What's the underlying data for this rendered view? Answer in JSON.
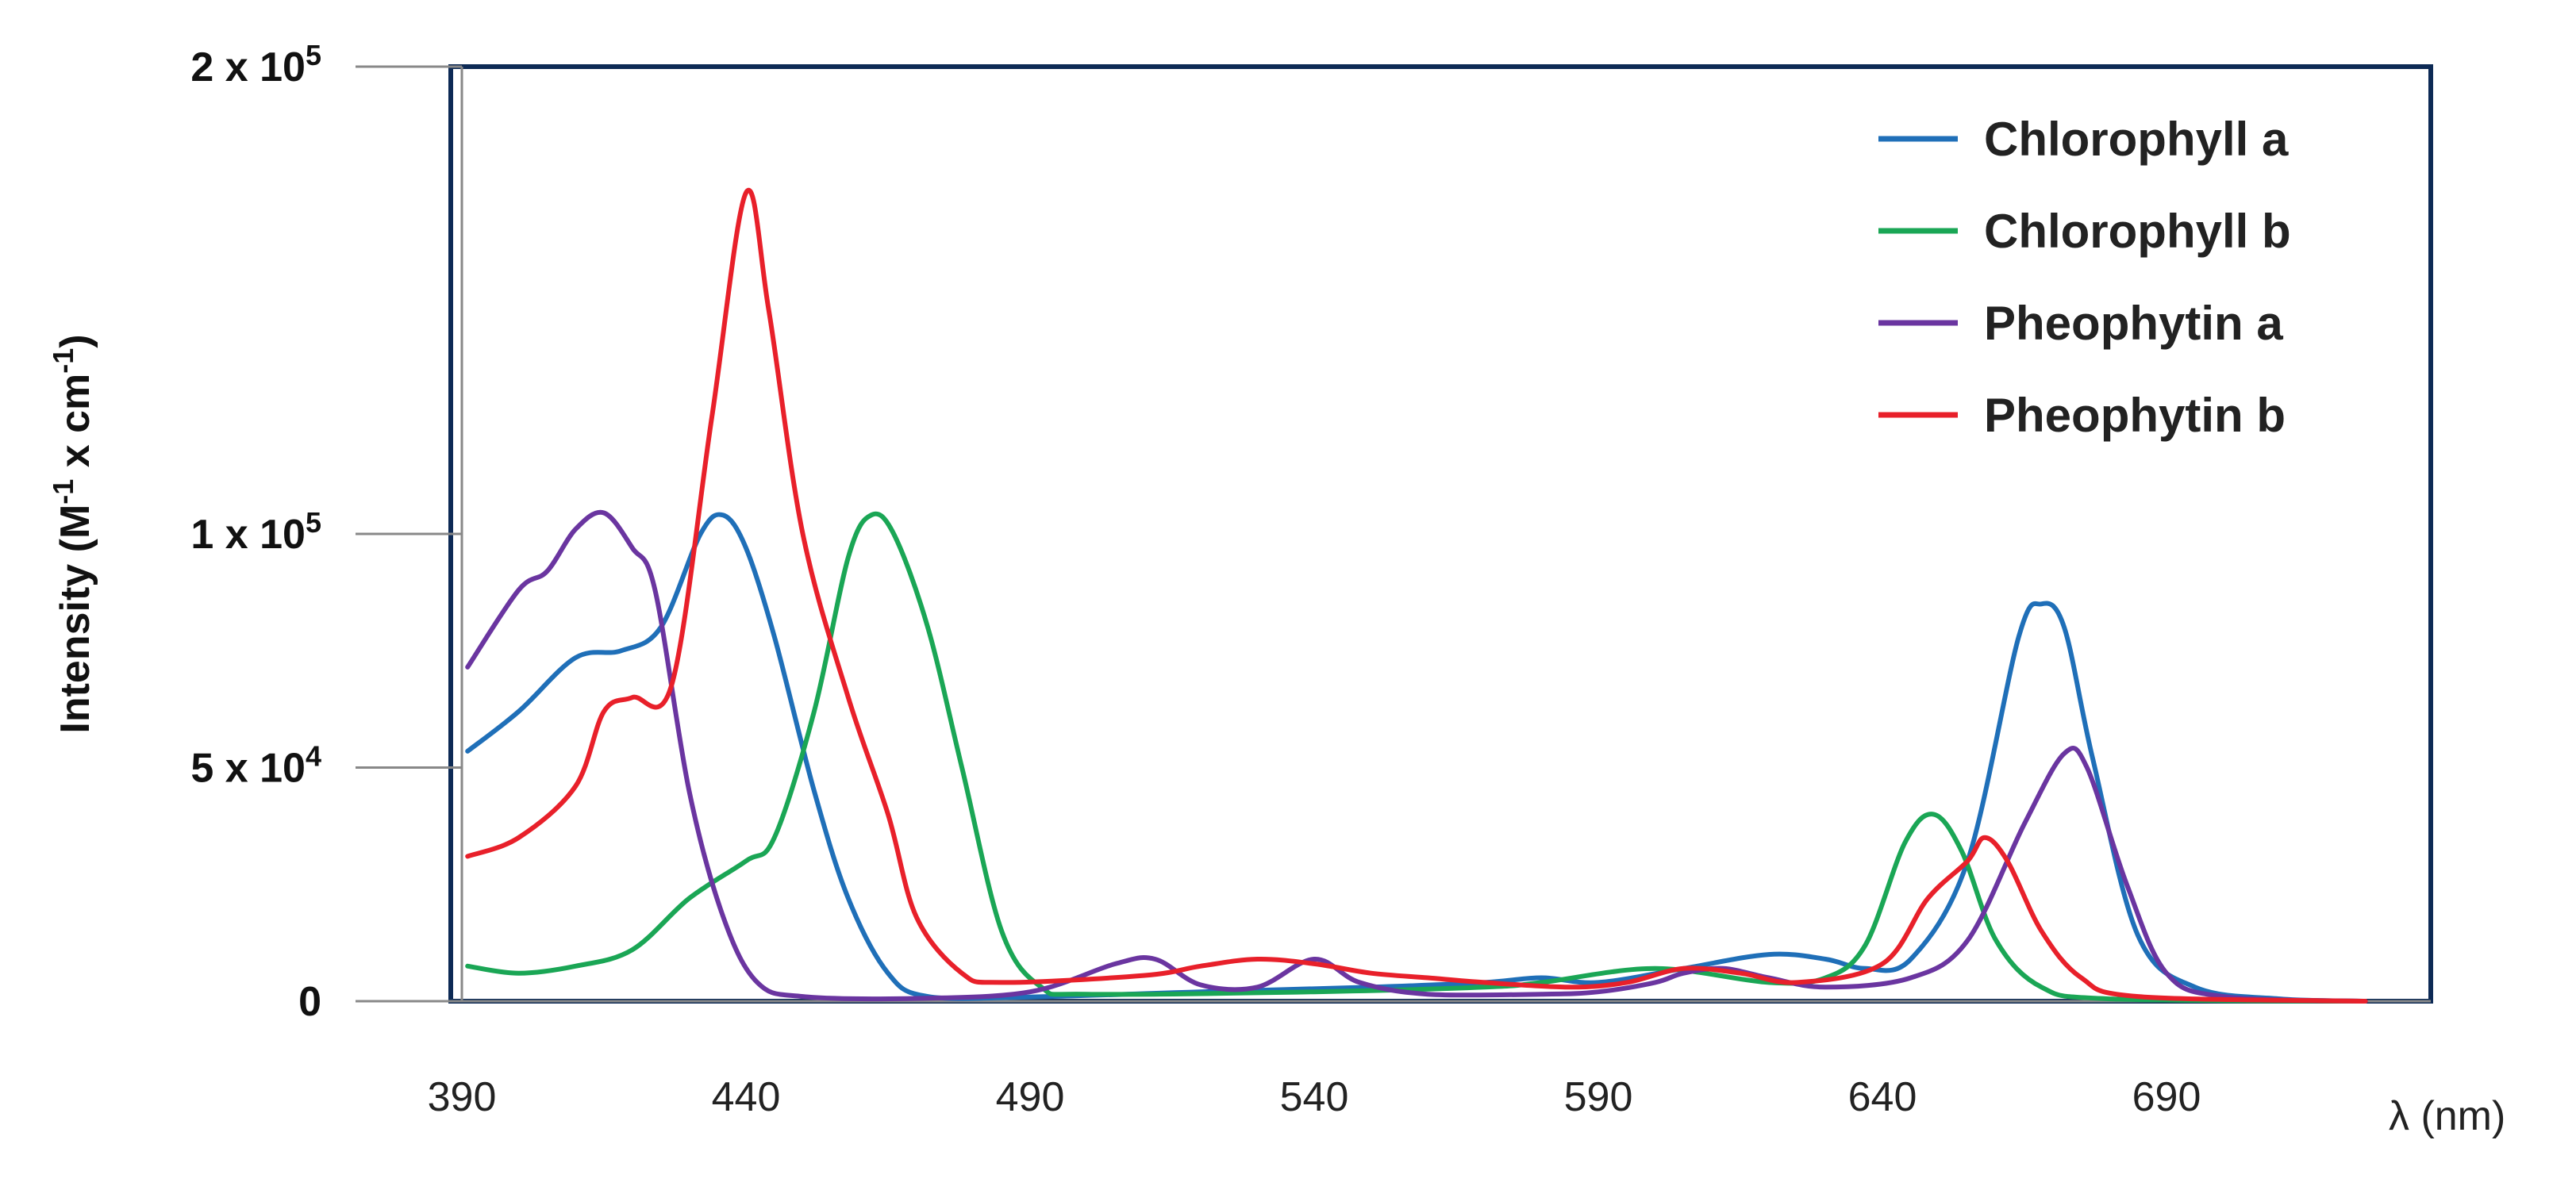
{
  "chart_data": {
    "type": "line",
    "xlabel": "λ (nm)",
    "ylabel": "Intensity (M-1 x cm-1)",
    "ylabel_parts": {
      "a": "Intensity (M",
      "b": "-1",
      "c": " x cm",
      "d": "-1",
      "e": ")"
    },
    "xlim": [
      390,
      725
    ],
    "ylim": [
      0,
      200000
    ],
    "x_ticks": [
      390,
      440,
      490,
      540,
      590,
      640,
      690
    ],
    "y_ticks": [
      {
        "value": 0,
        "base": "0",
        "exp": ""
      },
      {
        "value": 50000,
        "base": "5 x 10",
        "exp": "4"
      },
      {
        "value": 100000,
        "base": "1 x 10",
        "exp": "5"
      },
      {
        "value": 200000,
        "base": "2 x 10",
        "exp": "5"
      }
    ],
    "grid": false,
    "legend_position": "top-right",
    "series": [
      {
        "name": "Chlorophyll a",
        "color": "#1f6fb8",
        "points": [
          [
            391,
            53500
          ],
          [
            400,
            62000
          ],
          [
            410,
            73500
          ],
          [
            418,
            75000
          ],
          [
            425,
            80000
          ],
          [
            432,
            100000
          ],
          [
            436,
            104000
          ],
          [
            440,
            97000
          ],
          [
            445,
            78000
          ],
          [
            452,
            45000
          ],
          [
            458,
            22000
          ],
          [
            465,
            6000
          ],
          [
            472,
            1000
          ],
          [
            490,
            900
          ],
          [
            520,
            2000
          ],
          [
            550,
            3000
          ],
          [
            570,
            4000
          ],
          [
            580,
            5000
          ],
          [
            590,
            4000
          ],
          [
            605,
            7000
          ],
          [
            620,
            10000
          ],
          [
            630,
            9000
          ],
          [
            637,
            7000
          ],
          [
            645,
            9000
          ],
          [
            655,
            30000
          ],
          [
            664,
            78000
          ],
          [
            668,
            85000
          ],
          [
            672,
            80000
          ],
          [
            677,
            52000
          ],
          [
            685,
            14000
          ],
          [
            695,
            3000
          ],
          [
            710,
            500
          ],
          [
            725,
            0
          ]
        ]
      },
      {
        "name": "Chlorophyll b",
        "color": "#1aa655",
        "points": [
          [
            391,
            7500
          ],
          [
            400,
            6000
          ],
          [
            410,
            7500
          ],
          [
            420,
            11000
          ],
          [
            430,
            22000
          ],
          [
            440,
            30000
          ],
          [
            445,
            35000
          ],
          [
            452,
            62000
          ],
          [
            458,
            95000
          ],
          [
            462,
            104000
          ],
          [
            466,
            100000
          ],
          [
            472,
            80000
          ],
          [
            478,
            50000
          ],
          [
            485,
            15000
          ],
          [
            492,
            3000
          ],
          [
            500,
            1500
          ],
          [
            540,
            2000
          ],
          [
            570,
            3000
          ],
          [
            580,
            4000
          ],
          [
            600,
            7000
          ],
          [
            620,
            4000
          ],
          [
            630,
            5000
          ],
          [
            637,
            12000
          ],
          [
            644,
            34000
          ],
          [
            649,
            40000
          ],
          [
            654,
            32000
          ],
          [
            660,
            13000
          ],
          [
            668,
            3000
          ],
          [
            680,
            500
          ],
          [
            725,
            0
          ]
        ]
      },
      {
        "name": "Pheophytin a",
        "color": "#6a35a0",
        "points": [
          [
            391,
            71500
          ],
          [
            400,
            88000
          ],
          [
            405,
            92000
          ],
          [
            410,
            101000
          ],
          [
            415,
            104500
          ],
          [
            420,
            97000
          ],
          [
            424,
            88000
          ],
          [
            430,
            45000
          ],
          [
            436,
            18000
          ],
          [
            442,
            4000
          ],
          [
            450,
            1000
          ],
          [
            470,
            600
          ],
          [
            490,
            2000
          ],
          [
            505,
            8000
          ],
          [
            512,
            9000
          ],
          [
            520,
            3500
          ],
          [
            530,
            3000
          ],
          [
            540,
            9000
          ],
          [
            548,
            4000
          ],
          [
            560,
            1500
          ],
          [
            580,
            1500
          ],
          [
            590,
            2000
          ],
          [
            600,
            4000
          ],
          [
            605,
            6000
          ],
          [
            612,
            7000
          ],
          [
            620,
            5000
          ],
          [
            630,
            3000
          ],
          [
            645,
            5000
          ],
          [
            655,
            13000
          ],
          [
            665,
            38000
          ],
          [
            672,
            53000
          ],
          [
            676,
            50000
          ],
          [
            683,
            25000
          ],
          [
            690,
            6000
          ],
          [
            700,
            1000
          ],
          [
            725,
            0
          ]
        ]
      },
      {
        "name": "Pheophytin b",
        "color": "#e8202a",
        "points": [
          [
            391,
            31000
          ],
          [
            400,
            35000
          ],
          [
            410,
            46000
          ],
          [
            415,
            62000
          ],
          [
            420,
            65000
          ],
          [
            427,
            68000
          ],
          [
            434,
            125000
          ],
          [
            440,
            173000
          ],
          [
            444,
            148000
          ],
          [
            450,
            100000
          ],
          [
            458,
            65000
          ],
          [
            465,
            40000
          ],
          [
            470,
            18000
          ],
          [
            478,
            6000
          ],
          [
            485,
            4000
          ],
          [
            510,
            5500
          ],
          [
            520,
            7500
          ],
          [
            530,
            9000
          ],
          [
            540,
            8000
          ],
          [
            550,
            6000
          ],
          [
            560,
            5000
          ],
          [
            570,
            4000
          ],
          [
            585,
            3000
          ],
          [
            595,
            4000
          ],
          [
            605,
            7000
          ],
          [
            615,
            6000
          ],
          [
            625,
            4000
          ],
          [
            640,
            8000
          ],
          [
            648,
            22000
          ],
          [
            655,
            30000
          ],
          [
            658,
            35000
          ],
          [
            662,
            30000
          ],
          [
            668,
            15000
          ],
          [
            675,
            5000
          ],
          [
            685,
            1000
          ],
          [
            725,
            0
          ]
        ]
      }
    ]
  }
}
